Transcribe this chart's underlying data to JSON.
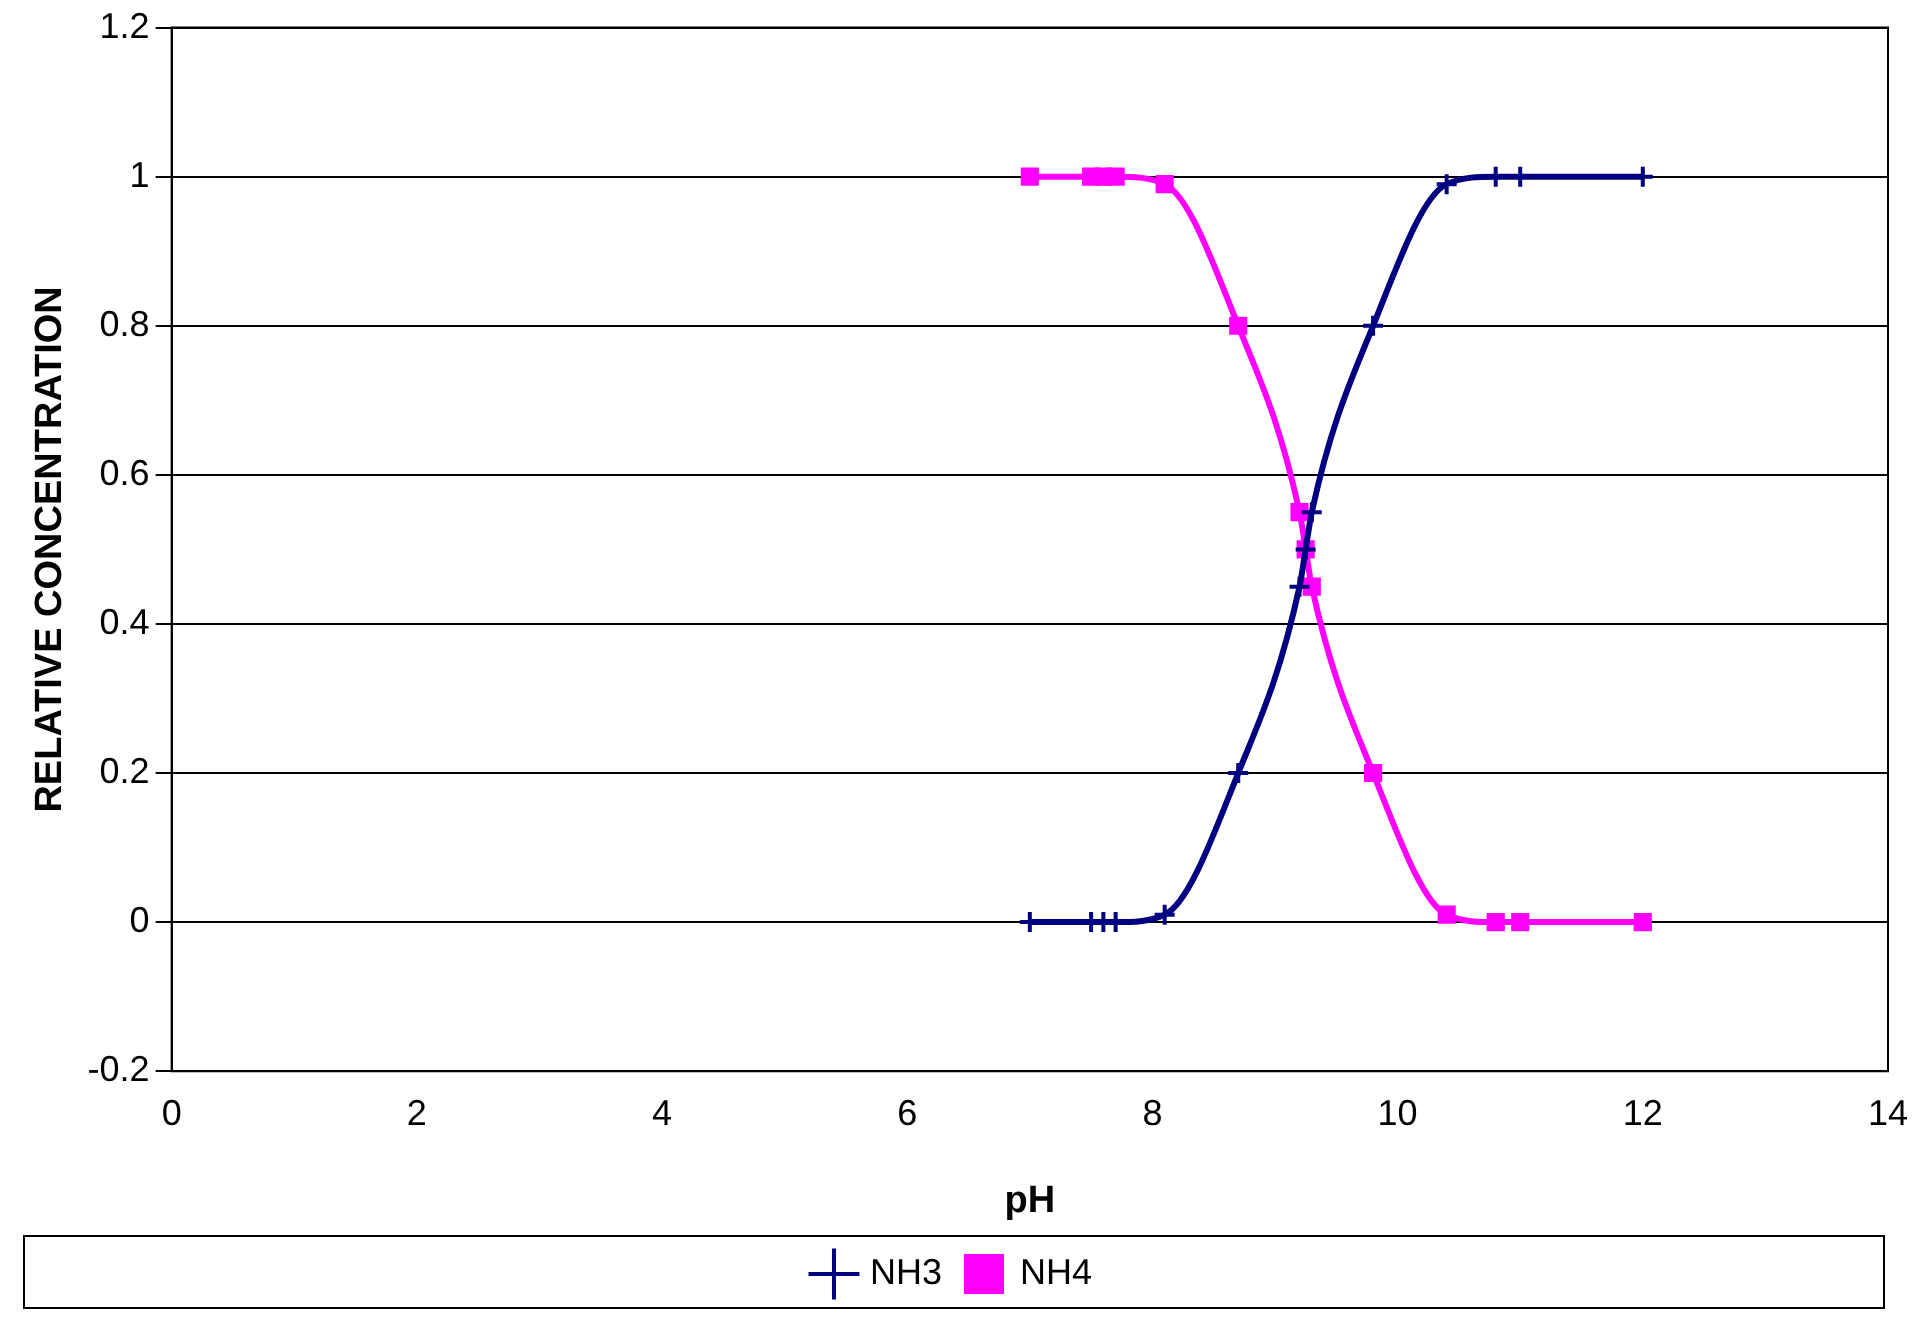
{
  "chart_data": {
    "type": "line",
    "xlabel": "pH",
    "ylabel": "RELATIVE CONCENTRATION",
    "x": [
      7,
      7.5,
      7.6,
      7.7,
      8.1,
      8.7,
      9.2,
      9.25,
      9.3,
      9.8,
      10.4,
      10.8,
      11,
      12
    ],
    "series": [
      {
        "name": "NH3",
        "color": "#000080",
        "marker": "cross",
        "values": [
          0,
          0,
          0,
          0,
          0.01,
          0.2,
          0.45,
          0.5,
          0.55,
          0.8,
          0.99,
          1,
          1,
          1
        ]
      },
      {
        "name": "NH4",
        "color": "#ff00ff",
        "marker": "square",
        "values": [
          1,
          1,
          1,
          1,
          0.99,
          0.8,
          0.55,
          0.5,
          0.45,
          0.2,
          0.01,
          0,
          0,
          0
        ]
      }
    ],
    "xlim": [
      0,
      14
    ],
    "xticks": [
      0,
      2,
      4,
      6,
      8,
      10,
      12,
      14
    ],
    "ylim": [
      -0.2,
      1.2
    ],
    "yticks": [
      -0.2,
      0,
      0.2,
      0.4,
      0.6,
      0.8,
      1,
      1.2
    ],
    "grid": "y",
    "legend": "bottom",
    "line_style": "solid"
  }
}
